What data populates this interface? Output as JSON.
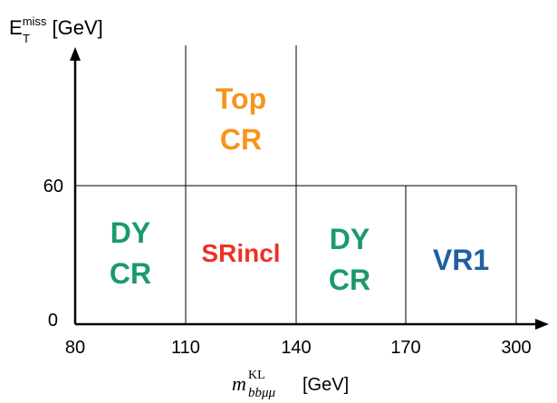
{
  "y_axis": {
    "label_base": "E",
    "label_sup": "miss",
    "label_sub": "T",
    "label_unit": " [GeV]",
    "ticks": [
      "60",
      "0"
    ]
  },
  "x_axis": {
    "label_var": "m",
    "label_sup": "KL",
    "label_sub": "bbμμ",
    "label_unit": " [GeV]",
    "ticks": [
      "80",
      "110",
      "140",
      "170",
      "300"
    ]
  },
  "regions": {
    "top_cr": {
      "line1": "Top",
      "line2": "CR",
      "color": "#f7941d"
    },
    "dy_cr_left": {
      "line1": "DY",
      "line2": "CR",
      "color": "#1a9a6a"
    },
    "srincl": {
      "label": "SRincl",
      "color": "#ee3124"
    },
    "dy_cr_right": {
      "line1": "DY",
      "line2": "CR",
      "color": "#1a9a6a"
    },
    "vr1": {
      "label": "VR1",
      "color": "#1f5fa0"
    }
  }
}
